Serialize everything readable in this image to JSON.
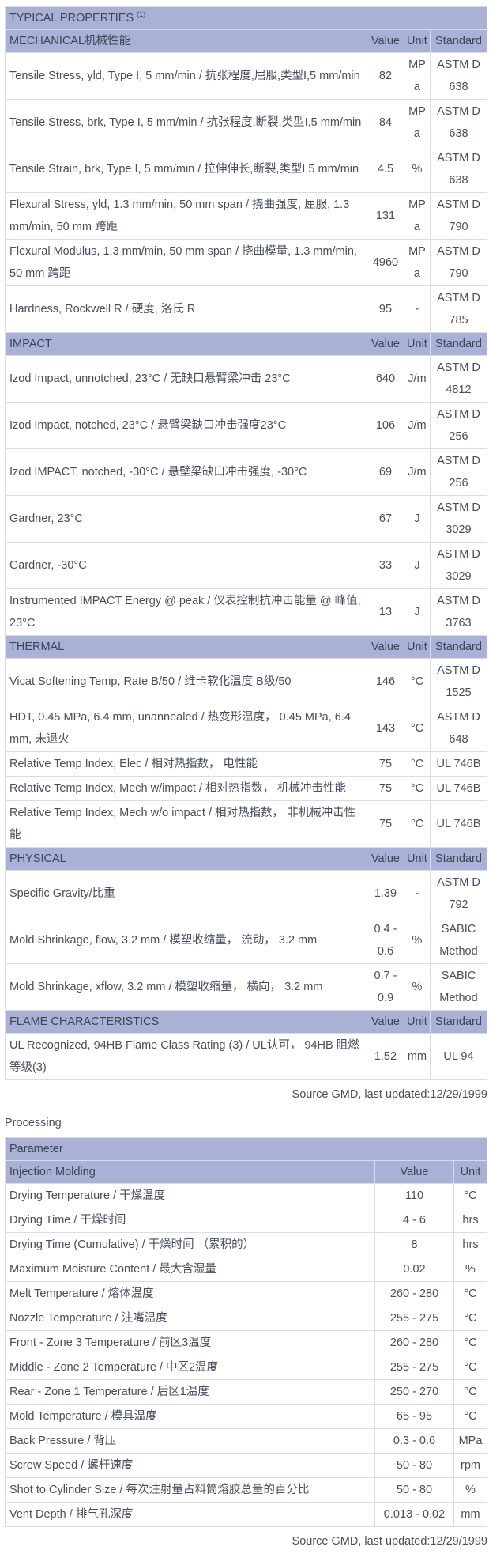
{
  "colors": {
    "section_header_bg": "#a9b2d6",
    "table_outer_border": "#7f8798",
    "row_border": "#d9dce5",
    "text": "#474d5d"
  },
  "typical_properties": {
    "title": "TYPICAL PROPERTIES ",
    "title_sup": "(1)",
    "col_headers": [
      "Value",
      "Unit",
      "Standard"
    ],
    "sections": [
      {
        "label": "MECHANICAL机械性能",
        "rows": [
          {
            "property": "Tensile Stress, yld, Type I, 5 mm/min / 抗张程度,屈服,类型I,5 mm/min",
            "value": "82",
            "unit": "MPa",
            "standard": "ASTM D 638"
          },
          {
            "property": "Tensile Stress, brk, Type I, 5 mm/min / 抗张程度,断裂,类型I,5 mm/min",
            "value": "84",
            "unit": "MPa",
            "standard": "ASTM D 638"
          },
          {
            "property": "Tensile Strain, brk, Type I, 5 mm/min / 拉伸伸长,断裂,类型I,5 mm/min",
            "value": "4.5",
            "unit": "%",
            "standard": "ASTM D 638"
          },
          {
            "property": "Flexural Stress, yld, 1.3 mm/min, 50 mm span / 挠曲强度, 屈服, 1.3 mm/min, 50 mm 跨距",
            "value": "131",
            "unit": "MPa",
            "standard": "ASTM D 790"
          },
          {
            "property": "Flexural Modulus, 1.3 mm/min, 50 mm span / 挠曲模量, 1.3 mm/min, 50 mm 跨距",
            "value": "4960",
            "unit": "MPa",
            "standard": "ASTM D 790"
          },
          {
            "property": "Hardness, Rockwell R / 硬度, 洛氏 R",
            "value": "95",
            "unit": "-",
            "standard": "ASTM D 785"
          }
        ]
      },
      {
        "label": "IMPACT",
        "rows": [
          {
            "property": "Izod Impact, unnotched, 23°C / 无缺口悬臂梁冲击 23°C",
            "value": "640",
            "unit": "J/m",
            "standard": "ASTM D 4812"
          },
          {
            "property": "Izod Impact, notched, 23°C / 悬臂梁缺口冲击强度23°C",
            "value": "106",
            "unit": "J/m",
            "standard": "ASTM D 256"
          },
          {
            "property": "Izod IMPACT, notched, -30°C / 悬壁梁缺口冲击强度, -30°C",
            "value": "69",
            "unit": "J/m",
            "standard": "ASTM D 256"
          },
          {
            "property": "Gardner, 23°C",
            "value": "67",
            "unit": "J",
            "standard": "ASTM D 3029"
          },
          {
            "property": "Gardner, -30°C",
            "value": "33",
            "unit": "J",
            "standard": "ASTM D 3029"
          },
          {
            "property": "Instrumented IMPACT Energy @ peak / 仪表控制抗冲击能量 @ 峰值, 23°C",
            "value": "13",
            "unit": "J",
            "standard": "ASTM D 3763"
          }
        ]
      },
      {
        "label": "THERMAL",
        "rows": [
          {
            "property": "Vicat Softening Temp, Rate B/50 / 维卡软化温度 B级/50",
            "value": "146",
            "unit": "°C",
            "standard": "ASTM D 1525"
          },
          {
            "property": "HDT, 0.45 MPa, 6.4 mm, unannealed / 热变形温度， 0.45 MPa, 6.4 mm, 未退火",
            "value": "143",
            "unit": "°C",
            "standard": "ASTM D 648"
          },
          {
            "property": "Relative Temp Index, Elec / 相对热指数， 电性能",
            "value": "75",
            "unit": "°C",
            "standard": "UL 746B"
          },
          {
            "property": "Relative Temp Index, Mech w/impact / 相对热指数， 机械冲击性能",
            "value": "75",
            "unit": "°C",
            "standard": "UL 746B"
          },
          {
            "property": "Relative Temp Index, Mech w/o impact / 相对热指数， 非机械冲击性能",
            "value": "75",
            "unit": "°C",
            "standard": "UL 746B"
          }
        ]
      },
      {
        "label": "PHYSICAL",
        "rows": [
          {
            "property": "Specific Gravity/比重",
            "value": "1.39",
            "unit": "-",
            "standard": "ASTM D 792"
          },
          {
            "property": "Mold Shrinkage, flow, 3.2 mm / 模塑收缩量， 流动， 3.2 mm",
            "value": "0.4 - 0.6",
            "unit": "%",
            "standard": "SABIC Method"
          },
          {
            "property": "Mold Shrinkage, xflow, 3.2 mm / 模塑收缩量， 横向， 3.2 mm",
            "value": "0.7 - 0.9",
            "unit": "%",
            "standard": "SABIC Method"
          }
        ]
      },
      {
        "label": "FLAME CHARACTERISTICS",
        "rows": [
          {
            "property": "UL Recognized, 94HB Flame Class Rating (3) / UL认可， 94HB 阻燃等级(3)",
            "value": "1.52",
            "unit": "mm",
            "standard": "UL 94"
          }
        ]
      }
    ],
    "source_note": "Source GMD, last updated:12/29/1999"
  },
  "processing": {
    "heading": "Processing",
    "param_header": "Parameter",
    "subheader": {
      "label": "Injection Molding",
      "value_label": "Value",
      "unit_label": "Unit"
    },
    "rows": [
      {
        "property": "Drying Temperature / 干燥温度",
        "value": "110",
        "unit": "°C"
      },
      {
        "property": "Drying Time / 干燥时间",
        "value": "4 - 6",
        "unit": "hrs"
      },
      {
        "property": "Drying Time (Cumulative) / 干燥时间 （累积的）",
        "value": "8",
        "unit": "hrs"
      },
      {
        "property": "Maximum Moisture Content / 最大含湿量",
        "value": "0.02",
        "unit": "%"
      },
      {
        "property": "Melt Temperature / 熔体温度",
        "value": "260 - 280",
        "unit": "°C"
      },
      {
        "property": "Nozzle Temperature / 注嘴温度",
        "value": "255 - 275",
        "unit": "°C"
      },
      {
        "property": "Front - Zone 3 Temperature / 前区3温度",
        "value": "260 - 280",
        "unit": "°C"
      },
      {
        "property": "Middle - Zone 2 Temperature / 中区2温度",
        "value": "255 - 275",
        "unit": "°C"
      },
      {
        "property": "Rear - Zone 1 Temperature / 后区1温度",
        "value": "250 - 270",
        "unit": "°C"
      },
      {
        "property": "Mold Temperature / 模具温度",
        "value": "65 - 95",
        "unit": "°C"
      },
      {
        "property": "Back Pressure / 背压",
        "value": "0.3 - 0.6",
        "unit": "MPa"
      },
      {
        "property": "Screw Speed / 螺杆速度",
        "value": "50 - 80",
        "unit": "rpm"
      },
      {
        "property": "Shot to Cylinder Size / 每次注射量占料筒熔胶总量的百分比",
        "value": "50 - 80",
        "unit": "%"
      },
      {
        "property": "Vent Depth / 排气孔深度",
        "value": "0.013 - 0.02",
        "unit": "mm"
      }
    ],
    "source_note": "Source GMD, last updated:12/29/1999"
  }
}
